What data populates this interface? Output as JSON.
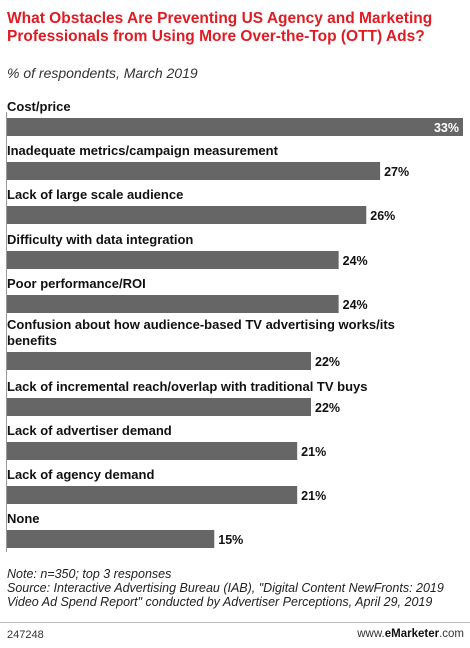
{
  "header": {
    "title": "What Obstacles Are Preventing US Agency and Marketing Professionals from Using More Over-the-Top (OTT) Ads?",
    "subtitle": "% of respondents, March 2019"
  },
  "chart_data": {
    "type": "bar",
    "orientation": "horizontal",
    "title": "What Obstacles Are Preventing US Agency and Marketing Professionals from Using More Over-the-Top (OTT) Ads?",
    "subtitle": "% of respondents, March 2019",
    "categories": [
      "Cost/price",
      "Inadequate metrics/campaign measurement",
      "Lack of large scale audience",
      "Difficulty with data integration",
      "Poor performance/ROI",
      "Confusion about how audience-based TV advertising works/its benefits",
      "Lack of incremental reach/overlap with traditional TV buys",
      "Lack of advertiser demand",
      "Lack of agency demand",
      "None"
    ],
    "values": [
      33,
      27,
      26,
      24,
      24,
      22,
      22,
      21,
      21,
      15
    ],
    "value_labels": [
      "33%",
      "27%",
      "26%",
      "24%",
      "24%",
      "22%",
      "22%",
      "21%",
      "21%",
      "15%"
    ],
    "xlim": [
      0,
      33
    ],
    "bar_color": "#666666",
    "grid": false,
    "legend": "none"
  },
  "footer": {
    "note_line1": "Note: n=350; top 3 responses",
    "note_line2": "Source: Interactive Advertising Bureau (IAB), \"Digital Content NewFronts: 2019 Video Ad Spend Report\" conducted by Advertiser Perceptions, April 29, 2019",
    "chart_id": "247248",
    "brand_prefix": "www.",
    "brand_name": "eMarketer",
    "brand_suffix": ".com"
  }
}
